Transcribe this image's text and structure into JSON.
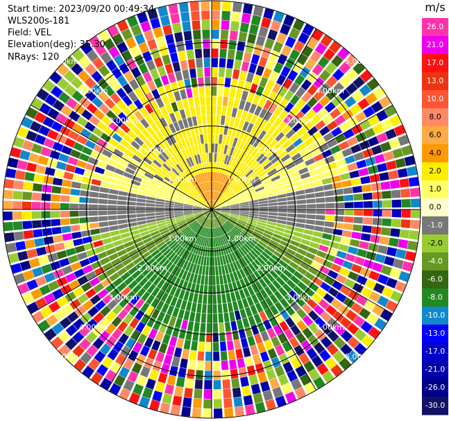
{
  "header": {
    "start_time": "Start time: 2023/09/20 00:49:34",
    "instrument": "WLS200s-181",
    "field": "Field: VEL",
    "elevation": "Elevation(deg): 35.30",
    "nrays": "NRays: 120"
  },
  "chart_data": {
    "type": "ppi",
    "field": "VEL",
    "unit_label": "m/s",
    "nrays": 120,
    "elevation_deg": 35.3,
    "max_range_km": 5.0,
    "range_rings_km": [
      1,
      2,
      3,
      4,
      5
    ],
    "ring_labels": [
      "1.00km",
      "2.00km",
      "3.00km",
      "4.00km",
      "5.00km"
    ],
    "spokes_deg": [
      0,
      30,
      60,
      90,
      120,
      150,
      180,
      210,
      240,
      270,
      300,
      330
    ],
    "colorbar": {
      "ticks": [
        "26.0",
        "21.0",
        "17.0",
        "13.0",
        "10.0",
        "8.0",
        "6.0",
        "4.0",
        "2.0",
        "1.0",
        "0.0",
        "-1.0",
        "-2.0",
        "-4.0",
        "-6.0",
        "-8.0",
        "-10.0",
        "-13.0",
        "-17.0",
        "-21.0",
        "-26.0",
        "-30.0"
      ],
      "colors": [
        "#ff33aa",
        "#ee00ee",
        "#ff1111",
        "#ee3311",
        "#ff5533",
        "#ff8866",
        "#ffaa44",
        "#ff9900",
        "#ffee00",
        "#ffff66",
        "#ffffcc",
        "#777777",
        "#99cc33",
        "#669922",
        "#336611",
        "#228822",
        "#1188cc",
        "#0000ff",
        "#0000cc",
        "#0000aa",
        "#000088",
        "#111166"
      ]
    },
    "wind_field": {
      "approaching_sector": "north (yellow, 2 to 4 m/s)",
      "receding_sector": "south (green, -2 to -6 m/s)",
      "near_field_max": "orange, 4 to 6 m/s",
      "zero_band": "east-west (gray)",
      "far_range": "noise beyond about 3.4 km"
    }
  }
}
